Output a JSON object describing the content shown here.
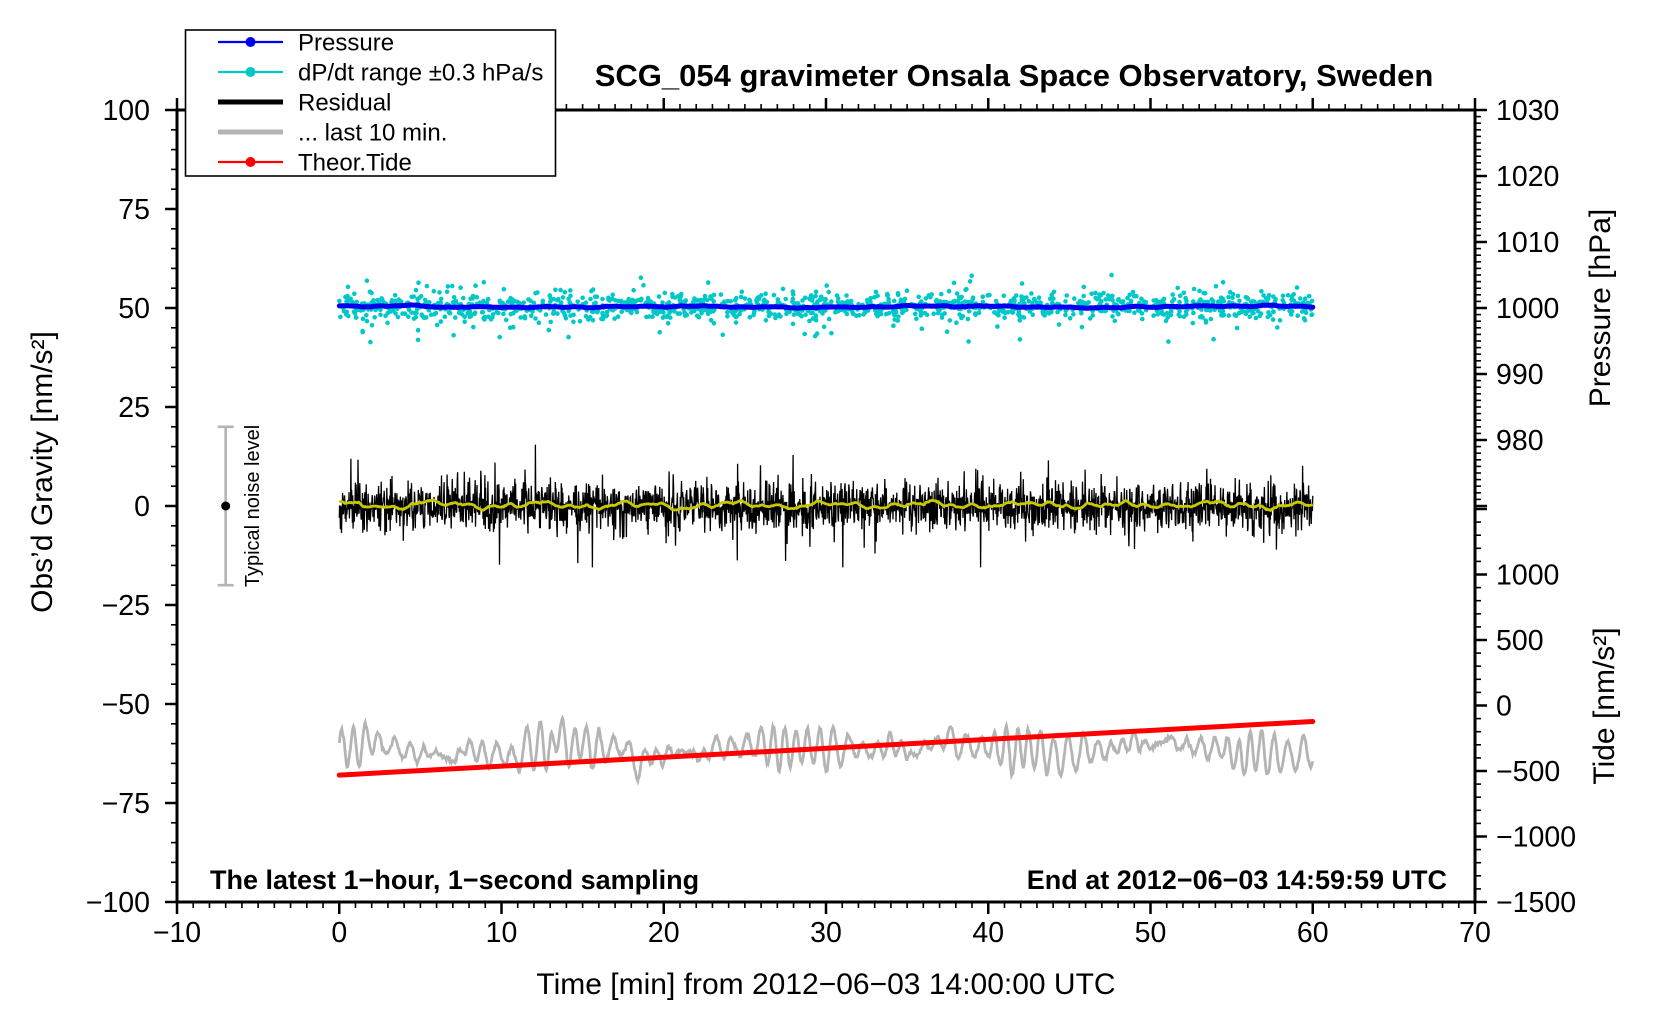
{
  "title": "SCG_054 gravimeter Onsala Space Observatory, Sweden",
  "notes": {
    "sampling": "The latest 1−hour, 1−second sampling",
    "end": "End at 2012−06−03 14:59:59 UTC"
  },
  "legend": {
    "items": [
      {
        "label": "Pressure",
        "color": "#0000ee",
        "marker": "line-dot",
        "thickness": 2.2
      },
      {
        "label": "dP/dt range ±0.3 hPa/s",
        "color": "#00c8c8",
        "marker": "line-dot",
        "thickness": 2.2
      },
      {
        "label": "Residual",
        "color": "#000000",
        "marker": "line",
        "thickness": 5
      },
      {
        "label": "... last 10 min.",
        "color": "#b4b4b4",
        "marker": "line",
        "thickness": 5
      },
      {
        "label": "Theor.Tide",
        "color": "#ff0000",
        "marker": "line-dot",
        "thickness": 2.2
      }
    ]
  },
  "chart_data": {
    "type": "line",
    "title": "SCG_054 gravimeter Onsala Space Observatory, Sweden",
    "xlabel": "Time [min] from 2012−06−03 14:00:00 UTC",
    "ylabel_left": "Obs’d Gravity [nm/s²]",
    "ylabel_right_top": "Pressure [hPa]",
    "ylabel_right_bottom": "Tide [nm/s²]",
    "grid": false,
    "legend_position": "top-left",
    "x_axis": {
      "min": -10,
      "max": 70,
      "major_tick": 10,
      "minor_tick": 1,
      "tick_labels": [
        -10,
        0,
        10,
        20,
        30,
        40,
        50,
        60,
        70
      ]
    },
    "left_axis": {
      "min": -100,
      "max": 100,
      "major_tick": 25,
      "minor_tick": 5,
      "tick_labels": [
        -100,
        -75,
        -50,
        -25,
        0,
        25,
        50,
        75,
        100
      ]
    },
    "pressure_axis": {
      "min": 970,
      "max": 1030,
      "major_tick": 10,
      "minor_tick": 1,
      "tick_labels": [
        980,
        990,
        1000,
        1010,
        1020,
        1030
      ]
    },
    "tide_axis": {
      "min": -1500,
      "max": 1500,
      "major_tick": 500,
      "minor_tick": 100,
      "tick_labels": [
        -1500,
        -1000,
        -500,
        0,
        500,
        1000
      ]
    },
    "series": [
      {
        "name": "dP/dt range ±0.3 hPa/s",
        "render": "scatter",
        "axis": "pressure",
        "color": "#00c8c8",
        "marker_radius": 2.3,
        "n_points": 1400,
        "t_range": [
          0,
          60
        ],
        "mean_hPa": 1000.2,
        "sd_hPa": 1.0
      },
      {
        "name": "Pressure",
        "render": "pressure-line",
        "axis": "pressure",
        "color": "#0000ee",
        "width": 5,
        "t_range": [
          0,
          60
        ],
        "mean_hPa": 1000.2,
        "variation_hPa": 0.2
      },
      {
        "name": "Residual",
        "render": "noise-line",
        "axis": "gravity",
        "color": "#000000",
        "width": 1.3,
        "t_range": [
          0,
          60
        ],
        "mean": 0,
        "sd": 3.0,
        "spike_amplitude": 13
      },
      {
        "name": "Residual low-pass",
        "render": "smooth-line",
        "axis": "gravity",
        "color": "#c8c800",
        "width": 2.8,
        "t_range": [
          0,
          60
        ],
        "mean": 0.2,
        "amplitude": 1.0
      },
      {
        "name": "... last 10 min.",
        "render": "wave-line",
        "axis": "gravity",
        "color": "#b4b4b4",
        "width": 2.8,
        "t_range": [
          0,
          60
        ],
        "mean": -61.3,
        "amplitude": 4.0,
        "period_min": 0.8
      },
      {
        "name": "Theor.Tide",
        "render": "straight-line",
        "axis": "tide",
        "color": "#ff0000",
        "width": 5,
        "t_points": [
          0,
          60
        ],
        "values": [
          -531,
          -122
        ]
      }
    ],
    "noise_indicator": {
      "t_min": -7,
      "value": 0,
      "half_range": 20,
      "label": "Typical noise level",
      "bar_color": "#b4b4b4",
      "dot_color": "#000000"
    }
  }
}
